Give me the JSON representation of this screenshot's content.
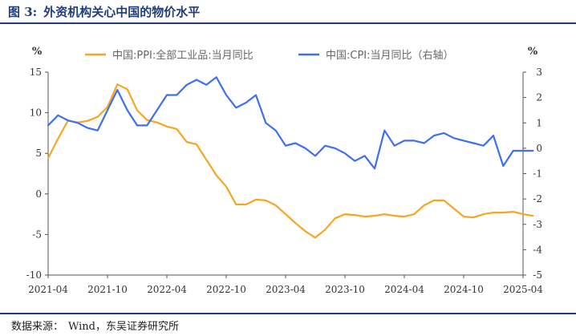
{
  "figure": {
    "number": "图 3:",
    "title": "外资机构关心中国的物价水平",
    "source_label": "数据来源：",
    "source_text": "Wind，东吴证券研究所"
  },
  "colors": {
    "ppi": "#f5a623",
    "cpi": "#3d6ff0",
    "axis": "#555555",
    "title": "#1f3d7a"
  },
  "chart_data": {
    "type": "line",
    "left_unit": "%",
    "right_unit": "%",
    "ylim_left": [
      -10,
      15
    ],
    "ylim_right": [
      -5,
      3
    ],
    "yticks_left": [
      15,
      10,
      5,
      0,
      -5,
      -10
    ],
    "yticks_right": [
      3,
      2,
      1,
      0,
      -1,
      -2,
      -3,
      -4,
      -5
    ],
    "x_start_month": "2021-04",
    "xtick_labels": [
      "2021-04",
      "2021-10",
      "2022-04",
      "2022-10",
      "2023-04",
      "2023-10",
      "2024-04",
      "2024-10",
      "2025-04"
    ],
    "grid": false,
    "legend_position": "top",
    "series": [
      {
        "name": "中国:PPI:全部工业品:当月同比",
        "axis": "left",
        "color": "#f5a623",
        "values": [
          4.4,
          6.8,
          9.0,
          8.8,
          9.0,
          9.5,
          10.7,
          13.5,
          12.9,
          10.3,
          9.1,
          8.8,
          8.3,
          8.0,
          6.4,
          6.1,
          4.2,
          2.3,
          0.9,
          -1.3,
          -1.3,
          -0.7,
          -0.8,
          -1.4,
          -2.5,
          -3.6,
          -4.6,
          -5.4,
          -4.4,
          -3.0,
          -2.5,
          -2.6,
          -2.8,
          -2.7,
          -2.5,
          -2.7,
          -2.8,
          -2.5,
          -1.4,
          -0.8,
          -0.8,
          -1.8,
          -2.8,
          -2.9,
          -2.5,
          -2.3,
          -2.3,
          -2.2,
          -2.5,
          -2.7
        ]
      },
      {
        "name": "中国:CPI:当月同比（右轴）",
        "axis": "right",
        "color": "#3d6ff0",
        "values": [
          0.9,
          1.3,
          1.1,
          1.0,
          0.8,
          0.7,
          1.5,
          2.3,
          1.5,
          0.9,
          0.9,
          1.5,
          2.1,
          2.1,
          2.5,
          2.7,
          2.5,
          2.8,
          2.1,
          1.6,
          1.8,
          2.1,
          1.0,
          0.7,
          0.1,
          0.2,
          0.0,
          -0.3,
          0.1,
          0.0,
          -0.2,
          -0.5,
          -0.3,
          -0.8,
          0.7,
          0.1,
          0.3,
          0.3,
          0.2,
          0.5,
          0.6,
          0.4,
          0.3,
          0.2,
          0.1,
          0.5,
          -0.7,
          -0.1,
          -0.1,
          -0.1
        ]
      }
    ]
  }
}
